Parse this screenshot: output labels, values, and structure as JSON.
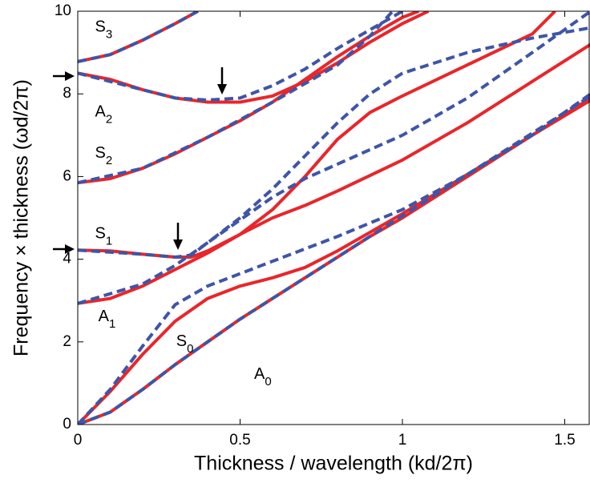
{
  "chart_data": {
    "type": "line",
    "xlabel": "Thickness / wavelength (kd/2π)",
    "ylabel": "Frequency × thickness (ωd/2π)",
    "xlim": [
      0,
      1.58
    ],
    "ylim": [
      0,
      10
    ],
    "xticks": [
      0,
      0.5,
      1,
      1.5
    ],
    "yticks": [
      0,
      2,
      4,
      6,
      8,
      10
    ],
    "grid": false,
    "series": [
      {
        "color": "#e8262b",
        "dashed": false,
        "x": [
          0,
          0.1,
          0.2,
          0.3,
          0.4,
          0.5,
          0.6,
          0.7,
          0.8,
          0.9,
          1.0,
          1.2,
          1.4,
          1.58
        ],
        "values": [
          0,
          0.3,
          0.85,
          1.45,
          2.0,
          2.55,
          3.05,
          3.55,
          4.05,
          4.55,
          5.0,
          6.0,
          7.0,
          7.85
        ]
      },
      {
        "color": "#e8262b",
        "dashed": false,
        "x": [
          0,
          0.1,
          0.2,
          0.3,
          0.4,
          0.5,
          0.6,
          0.7,
          0.8,
          0.9,
          1.0,
          1.2,
          1.4,
          1.58
        ],
        "values": [
          0,
          0.8,
          1.7,
          2.5,
          3.05,
          3.35,
          3.55,
          3.8,
          4.2,
          4.65,
          5.1,
          6.05,
          7.0,
          7.9
        ]
      },
      {
        "color": "#e8262b",
        "dashed": false,
        "x": [
          0,
          0.1,
          0.2,
          0.3,
          0.4,
          0.5,
          0.6,
          0.7,
          0.8,
          0.9,
          1.0,
          1.2,
          1.4,
          1.47
        ],
        "values": [
          2.93,
          3.05,
          3.35,
          3.75,
          4.15,
          4.6,
          5.2,
          6.0,
          6.9,
          7.55,
          7.95,
          8.7,
          9.45,
          10
        ]
      },
      {
        "color": "#e8262b",
        "dashed": false,
        "x": [
          0,
          0.1,
          0.2,
          0.3,
          0.35,
          0.4,
          0.5,
          0.6,
          0.7,
          0.8,
          1.0,
          1.2,
          1.4,
          1.58
        ],
        "values": [
          4.22,
          4.2,
          4.12,
          4.05,
          4.05,
          4.2,
          4.6,
          5.0,
          5.3,
          5.65,
          6.4,
          7.3,
          8.3,
          9.2
        ]
      },
      {
        "color": "#e8262b",
        "dashed": false,
        "x": [
          0,
          0.1,
          0.2,
          0.3,
          0.4,
          0.5,
          0.6,
          0.7,
          0.8,
          0.9,
          1.0,
          1.05
        ],
        "values": [
          5.85,
          5.95,
          6.2,
          6.55,
          6.95,
          7.35,
          7.8,
          8.35,
          8.9,
          9.4,
          9.85,
          10
        ]
      },
      {
        "color": "#e8262b",
        "dashed": false,
        "x": [
          0,
          0.1,
          0.2,
          0.3,
          0.4,
          0.5,
          0.6,
          0.7,
          0.8,
          0.9,
          1.0,
          1.08
        ],
        "values": [
          8.5,
          8.35,
          8.1,
          7.9,
          7.8,
          7.8,
          7.95,
          8.3,
          8.75,
          9.25,
          9.7,
          10
        ]
      },
      {
        "color": "#e8262b",
        "dashed": false,
        "x": [
          0,
          0.1,
          0.2,
          0.3,
          0.37
        ],
        "values": [
          8.78,
          8.95,
          9.3,
          9.7,
          10
        ]
      },
      {
        "color": "#3e55a8",
        "dashed": true,
        "x": [
          0,
          0.1,
          0.2,
          0.3,
          0.4,
          0.5,
          0.6,
          0.7,
          0.8,
          0.9,
          1.0,
          1.2,
          1.4,
          1.58
        ],
        "values": [
          0,
          0.3,
          0.85,
          1.45,
          2.0,
          2.55,
          3.05,
          3.55,
          4.05,
          4.55,
          5.05,
          6.05,
          7.05,
          7.95
        ]
      },
      {
        "color": "#3e55a8",
        "dashed": true,
        "x": [
          0,
          0.1,
          0.2,
          0.3,
          0.4,
          0.5,
          0.6,
          0.8,
          1.0,
          1.2,
          1.4,
          1.58
        ],
        "values": [
          0,
          0.85,
          1.9,
          2.9,
          3.35,
          3.65,
          3.95,
          4.55,
          5.2,
          6.05,
          7.0,
          8.0
        ]
      },
      {
        "color": "#3e55a8",
        "dashed": true,
        "x": [
          0,
          0.2,
          0.3,
          0.4,
          0.5,
          0.6,
          0.7,
          0.8,
          0.9,
          1.0,
          1.2,
          1.4,
          1.58
        ],
        "values": [
          2.93,
          3.4,
          3.85,
          4.4,
          5.0,
          5.7,
          6.5,
          7.3,
          8.0,
          8.5,
          9.0,
          9.35,
          9.6
        ]
      },
      {
        "color": "#3e55a8",
        "dashed": true,
        "x": [
          0,
          0.2,
          0.3,
          0.35,
          0.4,
          0.5,
          0.6,
          0.7,
          0.8,
          1.0,
          1.2,
          1.4,
          1.58
        ],
        "values": [
          4.22,
          4.12,
          4.05,
          4.1,
          4.4,
          4.95,
          5.5,
          5.95,
          6.3,
          7.0,
          7.9,
          9.0,
          10
        ]
      },
      {
        "color": "#3e55a8",
        "dashed": true,
        "x": [
          0,
          0.2,
          0.4,
          0.6,
          0.8,
          0.9,
          0.97
        ],
        "values": [
          5.85,
          6.2,
          6.95,
          7.8,
          8.7,
          9.4,
          10
        ]
      },
      {
        "color": "#3e55a8",
        "dashed": true,
        "x": [
          0,
          0.2,
          0.3,
          0.4,
          0.5,
          0.6,
          0.7,
          0.8,
          0.9,
          1.0
        ],
        "values": [
          8.5,
          8.1,
          7.9,
          7.85,
          7.9,
          8.2,
          8.6,
          9.1,
          9.55,
          10
        ]
      },
      {
        "color": "#3e55a8",
        "dashed": true,
        "x": [
          0,
          0.1,
          0.2,
          0.3,
          0.37
        ],
        "values": [
          8.78,
          8.95,
          9.3,
          9.7,
          10
        ]
      }
    ],
    "annotations": [
      {
        "text": "S",
        "sub": "3",
        "x": 0.08,
        "y": 9.6
      },
      {
        "text": "A",
        "sub": "2",
        "x": 0.08,
        "y": 7.55
      },
      {
        "text": "S",
        "sub": "2",
        "x": 0.08,
        "y": 6.55
      },
      {
        "text": "S",
        "sub": "1",
        "x": 0.08,
        "y": 4.6
      },
      {
        "text": "A",
        "sub": "1",
        "x": 0.09,
        "y": 2.6
      },
      {
        "text": "S",
        "sub": "0",
        "x": 0.33,
        "y": 2.0
      },
      {
        "text": "A",
        "sub": "0",
        "x": 0.57,
        "y": 1.2
      }
    ]
  }
}
